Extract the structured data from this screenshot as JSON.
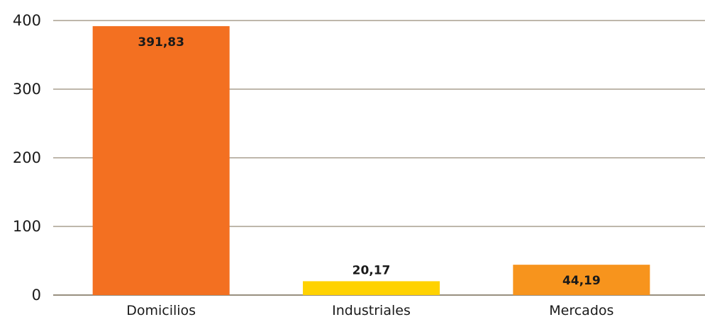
{
  "chart_data": {
    "type": "bar",
    "categories": [
      "Domicilios",
      "Industriales",
      "Mercados"
    ],
    "values": [
      391.83,
      20.17,
      44.19
    ],
    "value_labels": [
      "391,83",
      "20,17",
      "44,19"
    ],
    "bar_colors": [
      "#f37021",
      "#ffd200",
      "#f7941d"
    ],
    "yticks": [
      "0",
      "100",
      "200",
      "300",
      "400"
    ],
    "ylim": [
      0,
      400
    ],
    "grid": true,
    "legend": "none",
    "title": "",
    "xlabel": "",
    "ylabel": ""
  }
}
